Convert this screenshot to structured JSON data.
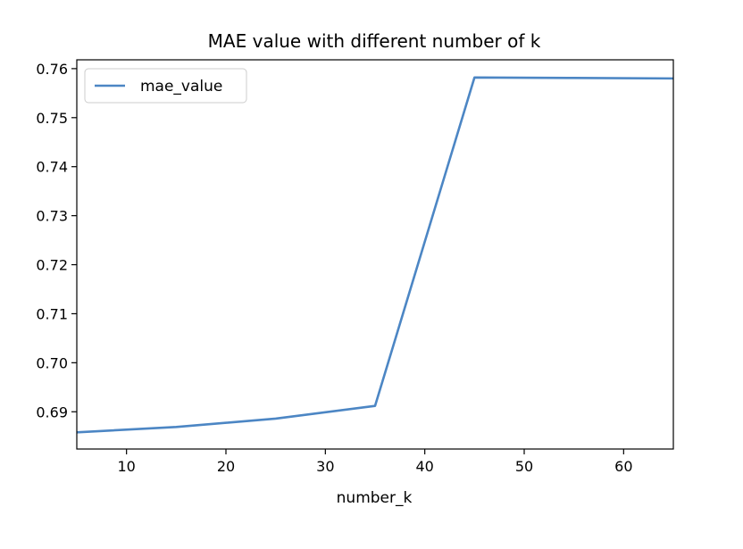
{
  "chart_data": {
    "type": "line",
    "title": "MAE value with different number of k",
    "xlabel": "number_k",
    "ylabel": "",
    "xlim": [
      5,
      65
    ],
    "ylim": [
      0.6824,
      0.7618
    ],
    "xticks": [
      10,
      20,
      30,
      40,
      50,
      60
    ],
    "yticks": [
      0.69,
      0.7,
      0.71,
      0.72,
      0.73,
      0.74,
      0.75,
      0.76
    ],
    "ytick_labels": [
      "0.69",
      "0.70",
      "0.71",
      "0.72",
      "0.73",
      "0.74",
      "0.75",
      "0.76"
    ],
    "grid": false,
    "legend_position": "upper-left",
    "series": [
      {
        "name": "mae_value",
        "color": "#4c86c4",
        "x": [
          5,
          15,
          25,
          35,
          45,
          55,
          65
        ],
        "y": [
          0.6858,
          0.6869,
          0.6886,
          0.6912,
          0.7582,
          0.7581,
          0.758
        ]
      }
    ]
  }
}
